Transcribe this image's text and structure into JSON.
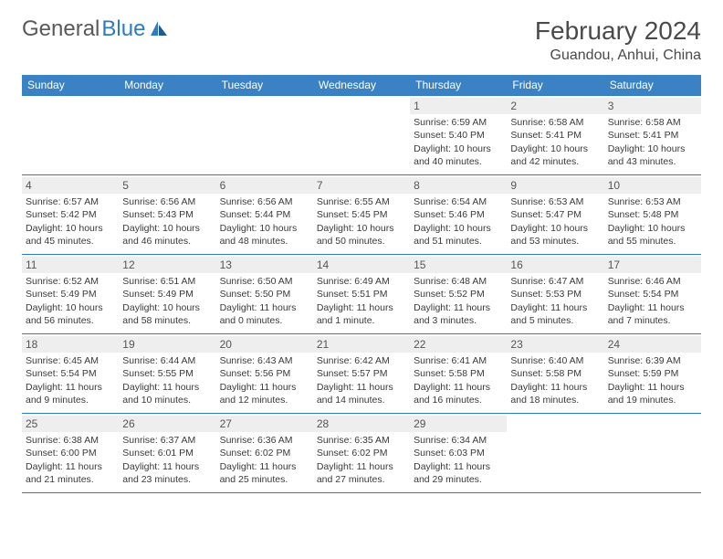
{
  "logo_text_gray": "General",
  "logo_text_blue": "Blue",
  "month_title": "February 2024",
  "location": "Guandou, Anhui, China",
  "day_headers": [
    "Sunday",
    "Monday",
    "Tuesday",
    "Wednesday",
    "Thursday",
    "Friday",
    "Saturday"
  ],
  "colors": {
    "header_bg": "#3b82c4",
    "header_text": "#ffffff",
    "divider": "#2d7bc0",
    "daynum_bg": "#eeeeee",
    "text": "#3a3a3a",
    "logo_gray": "#595959",
    "logo_blue": "#2d7bc0"
  },
  "weeks": [
    [
      {
        "blank": true
      },
      {
        "blank": true
      },
      {
        "blank": true
      },
      {
        "blank": true
      },
      {
        "num": "1",
        "sunrise": "Sunrise: 6:59 AM",
        "sunset": "Sunset: 5:40 PM",
        "daylight": "Daylight: 10 hours and 40 minutes."
      },
      {
        "num": "2",
        "sunrise": "Sunrise: 6:58 AM",
        "sunset": "Sunset: 5:41 PM",
        "daylight": "Daylight: 10 hours and 42 minutes."
      },
      {
        "num": "3",
        "sunrise": "Sunrise: 6:58 AM",
        "sunset": "Sunset: 5:41 PM",
        "daylight": "Daylight: 10 hours and 43 minutes."
      }
    ],
    [
      {
        "num": "4",
        "sunrise": "Sunrise: 6:57 AM",
        "sunset": "Sunset: 5:42 PM",
        "daylight": "Daylight: 10 hours and 45 minutes."
      },
      {
        "num": "5",
        "sunrise": "Sunrise: 6:56 AM",
        "sunset": "Sunset: 5:43 PM",
        "daylight": "Daylight: 10 hours and 46 minutes."
      },
      {
        "num": "6",
        "sunrise": "Sunrise: 6:56 AM",
        "sunset": "Sunset: 5:44 PM",
        "daylight": "Daylight: 10 hours and 48 minutes."
      },
      {
        "num": "7",
        "sunrise": "Sunrise: 6:55 AM",
        "sunset": "Sunset: 5:45 PM",
        "daylight": "Daylight: 10 hours and 50 minutes."
      },
      {
        "num": "8",
        "sunrise": "Sunrise: 6:54 AM",
        "sunset": "Sunset: 5:46 PM",
        "daylight": "Daylight: 10 hours and 51 minutes."
      },
      {
        "num": "9",
        "sunrise": "Sunrise: 6:53 AM",
        "sunset": "Sunset: 5:47 PM",
        "daylight": "Daylight: 10 hours and 53 minutes."
      },
      {
        "num": "10",
        "sunrise": "Sunrise: 6:53 AM",
        "sunset": "Sunset: 5:48 PM",
        "daylight": "Daylight: 10 hours and 55 minutes."
      }
    ],
    [
      {
        "num": "11",
        "sunrise": "Sunrise: 6:52 AM",
        "sunset": "Sunset: 5:49 PM",
        "daylight": "Daylight: 10 hours and 56 minutes."
      },
      {
        "num": "12",
        "sunrise": "Sunrise: 6:51 AM",
        "sunset": "Sunset: 5:49 PM",
        "daylight": "Daylight: 10 hours and 58 minutes."
      },
      {
        "num": "13",
        "sunrise": "Sunrise: 6:50 AM",
        "sunset": "Sunset: 5:50 PM",
        "daylight": "Daylight: 11 hours and 0 minutes."
      },
      {
        "num": "14",
        "sunrise": "Sunrise: 6:49 AM",
        "sunset": "Sunset: 5:51 PM",
        "daylight": "Daylight: 11 hours and 1 minute."
      },
      {
        "num": "15",
        "sunrise": "Sunrise: 6:48 AM",
        "sunset": "Sunset: 5:52 PM",
        "daylight": "Daylight: 11 hours and 3 minutes."
      },
      {
        "num": "16",
        "sunrise": "Sunrise: 6:47 AM",
        "sunset": "Sunset: 5:53 PM",
        "daylight": "Daylight: 11 hours and 5 minutes."
      },
      {
        "num": "17",
        "sunrise": "Sunrise: 6:46 AM",
        "sunset": "Sunset: 5:54 PM",
        "daylight": "Daylight: 11 hours and 7 minutes."
      }
    ],
    [
      {
        "num": "18",
        "sunrise": "Sunrise: 6:45 AM",
        "sunset": "Sunset: 5:54 PM",
        "daylight": "Daylight: 11 hours and 9 minutes."
      },
      {
        "num": "19",
        "sunrise": "Sunrise: 6:44 AM",
        "sunset": "Sunset: 5:55 PM",
        "daylight": "Daylight: 11 hours and 10 minutes."
      },
      {
        "num": "20",
        "sunrise": "Sunrise: 6:43 AM",
        "sunset": "Sunset: 5:56 PM",
        "daylight": "Daylight: 11 hours and 12 minutes."
      },
      {
        "num": "21",
        "sunrise": "Sunrise: 6:42 AM",
        "sunset": "Sunset: 5:57 PM",
        "daylight": "Daylight: 11 hours and 14 minutes."
      },
      {
        "num": "22",
        "sunrise": "Sunrise: 6:41 AM",
        "sunset": "Sunset: 5:58 PM",
        "daylight": "Daylight: 11 hours and 16 minutes."
      },
      {
        "num": "23",
        "sunrise": "Sunrise: 6:40 AM",
        "sunset": "Sunset: 5:58 PM",
        "daylight": "Daylight: 11 hours and 18 minutes."
      },
      {
        "num": "24",
        "sunrise": "Sunrise: 6:39 AM",
        "sunset": "Sunset: 5:59 PM",
        "daylight": "Daylight: 11 hours and 19 minutes."
      }
    ],
    [
      {
        "num": "25",
        "sunrise": "Sunrise: 6:38 AM",
        "sunset": "Sunset: 6:00 PM",
        "daylight": "Daylight: 11 hours and 21 minutes."
      },
      {
        "num": "26",
        "sunrise": "Sunrise: 6:37 AM",
        "sunset": "Sunset: 6:01 PM",
        "daylight": "Daylight: 11 hours and 23 minutes."
      },
      {
        "num": "27",
        "sunrise": "Sunrise: 6:36 AM",
        "sunset": "Sunset: 6:02 PM",
        "daylight": "Daylight: 11 hours and 25 minutes."
      },
      {
        "num": "28",
        "sunrise": "Sunrise: 6:35 AM",
        "sunset": "Sunset: 6:02 PM",
        "daylight": "Daylight: 11 hours and 27 minutes."
      },
      {
        "num": "29",
        "sunrise": "Sunrise: 6:34 AM",
        "sunset": "Sunset: 6:03 PM",
        "daylight": "Daylight: 11 hours and 29 minutes."
      },
      {
        "blank": true
      },
      {
        "blank": true
      }
    ]
  ]
}
